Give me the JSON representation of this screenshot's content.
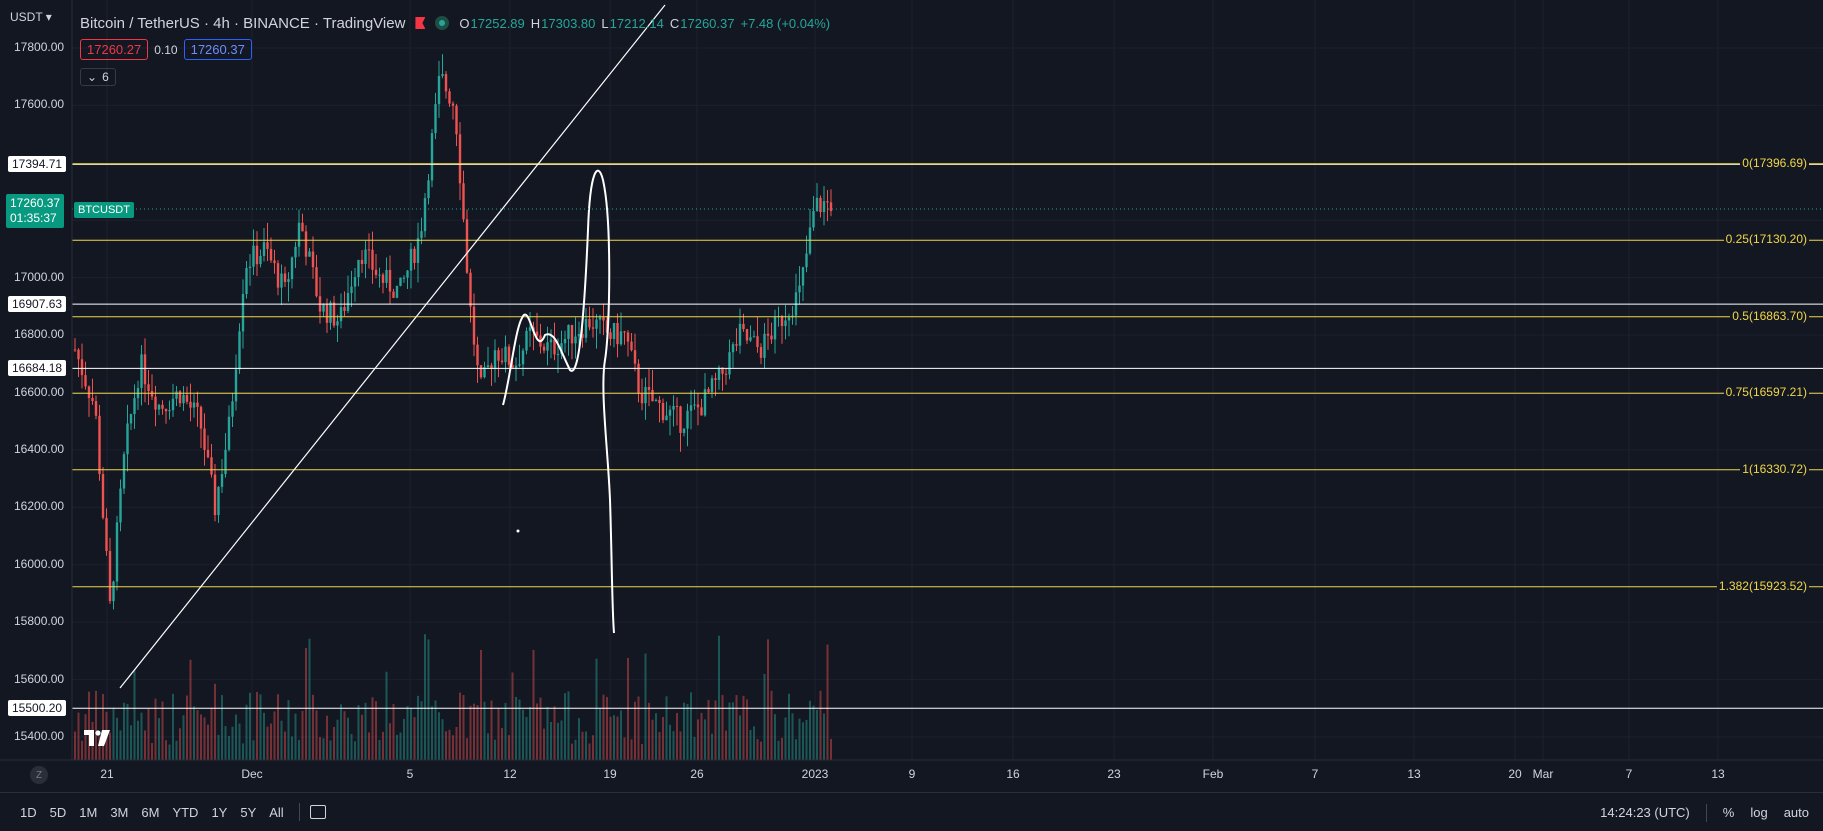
{
  "header": {
    "title": "Bitcoin / TetherUS · 4h · BINANCE · TradingView",
    "ohlc": {
      "o_label": "O",
      "o": "17252.89",
      "h_label": "H",
      "h": "17303.80",
      "l_label": "L",
      "l": "17212.14",
      "c_label": "C",
      "c": "17260.37",
      "change": "+7.48 (+0.04%)"
    }
  },
  "trade": {
    "sell": "17260.27",
    "spread": "0.10",
    "buy": "17260.37"
  },
  "indicators_collapsed_count": "6",
  "currency": "USDT",
  "last_price": {
    "price": "17260.37",
    "countdown": "01:35:37",
    "symbol": "BTCUSDT"
  },
  "price_axis": {
    "ticks": [
      "17800.00",
      "17600.00",
      "17000.00",
      "16800.00",
      "16600.00",
      "16400.00",
      "16200.00",
      "16000.00",
      "15800.00",
      "15600.00",
      "15400.00"
    ]
  },
  "horizontal_lines": [
    "17394.71",
    "16907.63",
    "16684.18",
    "15500.20"
  ],
  "fib_levels": [
    "0(17396.69)",
    "0.25(17130.20)",
    "0.5(16863.70)",
    "0.75(16597.21)",
    "1(16330.72)",
    "1.382(15923.52)"
  ],
  "time_axis": [
    "21",
    "Dec",
    "5",
    "12",
    "19",
    "26",
    "2023",
    "9",
    "16",
    "23",
    "Feb",
    "7",
    "13",
    "20",
    "Mar",
    "7",
    "13"
  ],
  "toolbar": {
    "ranges": [
      "1D",
      "5D",
      "1M",
      "3M",
      "6M",
      "YTD",
      "1Y",
      "5Y",
      "All"
    ],
    "clock": "14:24:23 (UTC)",
    "percent": "%",
    "log": "log",
    "auto": "auto"
  },
  "colors": {
    "bg": "#131722",
    "up": "#26a69a",
    "down": "#ef5350",
    "fib": "#f0d64a",
    "line": "#ffffff"
  },
  "chart_data": {
    "type": "candlestick",
    "ylim": [
      15330,
      17950
    ],
    "fib_prices": [
      17396.69,
      17130.2,
      16863.7,
      16597.21,
      16330.72,
      15923.52
    ],
    "hline_prices": [
      17394.71,
      16907.63,
      16684.18,
      15500.2
    ],
    "last": 17260.37
  }
}
